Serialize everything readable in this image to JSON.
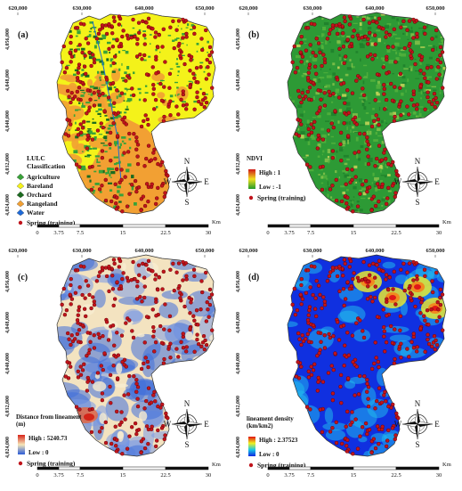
{
  "axes": {
    "x_ticks": [
      "620,000",
      "630,000",
      "640,000",
      "650,000"
    ],
    "y_ticks": [
      "4,056,000",
      "4,048,000",
      "4,040,000",
      "4,032,000",
      "4,024,000"
    ]
  },
  "scale_bar": {
    "labels": [
      "0",
      "3.75",
      "7.5",
      "15",
      "22.5",
      "30"
    ],
    "unit": "Km"
  },
  "compass": {
    "n": "N",
    "s": "S",
    "e": "E",
    "w": "W"
  },
  "colors": {
    "spring": "#c0141c",
    "agriculture": "#38a238",
    "bareland": "#f4f21a",
    "orchard": "#1b6b1f",
    "rangeland": "#f2a033",
    "water": "#1e6ad8"
  },
  "panels": [
    {
      "id": "a",
      "label": "(a)",
      "layer": "lulc",
      "legend_title": "LULC\nClassification",
      "legend_items": [
        {
          "label": "Agriculture",
          "color": "#38a238"
        },
        {
          "label": "Bareland",
          "color": "#f4f21a"
        },
        {
          "label": "Orchard",
          "color": "#1b6b1f"
        },
        {
          "label": "Rangeland",
          "color": "#f2a033"
        },
        {
          "label": "Water",
          "color": "#1e6ad8"
        }
      ],
      "spring_label": "Spring (training)"
    },
    {
      "id": "b",
      "label": "(b)",
      "layer": "ndvi",
      "legend_title": "NDVI",
      "ramp_high": "High : 1",
      "ramp_low": "Low : -1",
      "ramp_colors": [
        "#d01818",
        "#f0e020",
        "#1f9a2a"
      ],
      "spring_label": "Spring (training)"
    },
    {
      "id": "c",
      "label": "(c)",
      "layer": "distance",
      "legend_title": "Distance from lineament\n(m)",
      "ramp_high": "High : 5240.73",
      "ramp_low": "Low : 0",
      "ramp_colors": [
        "#d8241a",
        "#f5e6b8",
        "#2a5bd8"
      ],
      "spring_label": "Spring (training)"
    },
    {
      "id": "d",
      "label": "(d)",
      "layer": "density",
      "legend_title": "lineament density\n(km/km2)",
      "ramp_high": "High : 2.37523",
      "ramp_low": "Low : 0",
      "ramp_colors": [
        "#e01010",
        "#f0f020",
        "#18c8e8",
        "#1028e0"
      ],
      "spring_label": "Spring (training)"
    }
  ]
}
